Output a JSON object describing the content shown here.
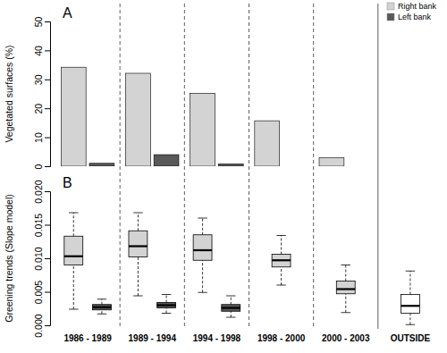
{
  "chart_data": [
    {
      "type": "bar",
      "title": "A",
      "ylabel": "Vegetated surfaces (%)",
      "categories": [
        null,
        null,
        null,
        null,
        null,
        null
      ],
      "series": [
        {
          "name": "Right bank",
          "color": "#d3d3d3",
          "values": [
            34.2,
            32.1,
            25.2,
            15.7,
            3.0,
            null
          ]
        },
        {
          "name": "Left bank",
          "color": "#595959",
          "values": [
            1.0,
            4.0,
            0.8,
            0,
            0,
            null
          ]
        }
      ],
      "ylim": [
        0,
        50
      ],
      "yticks": [
        0,
        10,
        20,
        30,
        40,
        50
      ],
      "legend": "top-right",
      "tick_labels": "y"
    },
    {
      "type": "box",
      "title": "B",
      "ylabel": "Greening trends (Slope model)",
      "categories": [
        "1986 - 1989",
        "1989 - 1994",
        "1994 - 1998",
        "1998 - 2000",
        "2000 - 2003",
        "OUTSIDE"
      ],
      "series": [
        {
          "colors": [
            "#d3d3d3",
            "#d3d3d3",
            "#d3d3d3",
            "#d3d3d3",
            "#d3d3d3",
            "#ffffff"
          ],
          "min": [
            0.0024,
            0.0044,
            0.0049,
            0.006,
            0.0019,
            0.0001
          ],
          "q1": [
            0.009,
            0.0102,
            0.0097,
            0.0087,
            0.0047,
            0.0018
          ],
          "median": [
            0.0103,
            0.0118,
            0.0112,
            0.0097,
            0.0054,
            0.0029
          ],
          "q3": [
            0.0133,
            0.0141,
            0.0135,
            0.0106,
            0.0066,
            0.0046
          ],
          "max": [
            0.0168,
            0.0168,
            0.016,
            0.0134,
            0.009,
            0.0081
          ]
        },
        {
          "color": "#595959",
          "min": [
            0.0017,
            0.0018,
            0.0012,
            null,
            null,
            null
          ],
          "q1": [
            0.0023,
            0.0026,
            0.0021,
            null,
            null,
            null
          ],
          "median": [
            0.0027,
            0.003,
            0.0026,
            null,
            null,
            null
          ],
          "q3": [
            0.0031,
            0.0034,
            0.0031,
            null,
            null,
            null
          ],
          "max": [
            0.0039,
            0.0046,
            0.0044,
            null,
            null,
            null
          ]
        }
      ],
      "ylim": [
        0,
        0.02
      ],
      "yticks": [
        {
          "value": 0,
          "label": "0.000"
        },
        {
          "value": 0.005,
          "label": "0.005"
        },
        {
          "value": 0.01,
          "label": "0.010"
        },
        {
          "value": 0.015,
          "label": "0.015"
        },
        {
          "value": 0.02,
          "label": "0.020"
        }
      ]
    }
  ]
}
